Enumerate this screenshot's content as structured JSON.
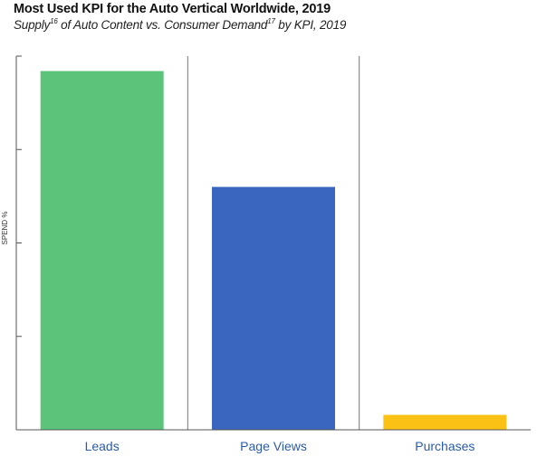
{
  "title": "Most Used KPI for the Auto Vertical Worldwide, 2019",
  "subtitle": {
    "part1": "Supply",
    "sup1": "16",
    "part2": " of Auto Content vs. Consumer Demand",
    "sup2": "17",
    "part3": " by KPI, 2019"
  },
  "chart_data": {
    "type": "bar",
    "categories": [
      "Leads",
      "Page Views",
      "Purchases"
    ],
    "values": [
      96,
      65,
      4
    ],
    "colors": [
      "#5cc47a",
      "#3a66c0",
      "#fbc114"
    ],
    "title": "Most Used KPI for the Auto Vertical Worldwide, 2019",
    "ylabel": "SPEND %",
    "xlabel": "",
    "ylim": [
      0,
      100
    ],
    "grid": "vertical separators between categories"
  }
}
